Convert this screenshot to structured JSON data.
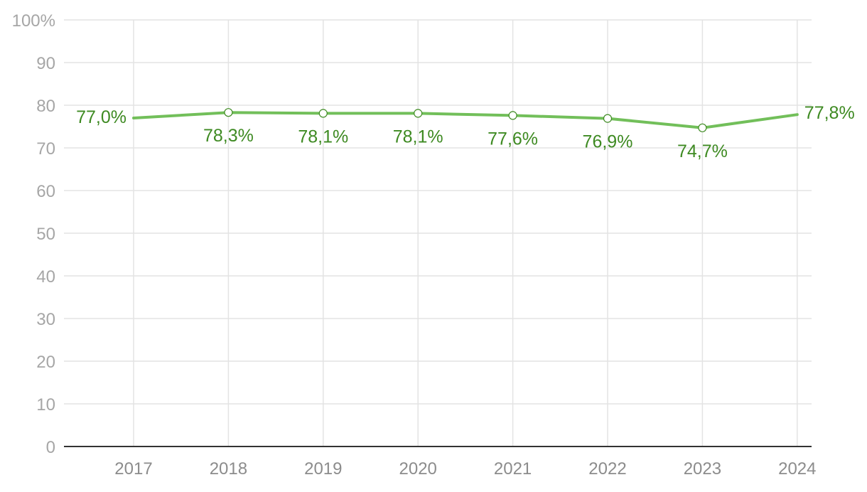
{
  "chart_data": {
    "type": "line",
    "categories": [
      "2017",
      "2018",
      "2019",
      "2020",
      "2021",
      "2022",
      "2023",
      "2024"
    ],
    "series": [
      {
        "values": [
          77.0,
          78.3,
          78.1,
          78.1,
          77.6,
          76.9,
          74.7,
          77.8
        ],
        "labels": [
          "77,0%",
          "78,3%",
          "78,1%",
          "78,1%",
          "77,6%",
          "76,9%",
          "74,7%",
          "77,8%"
        ],
        "color": "#72bf5a",
        "label_color": "#3e8a22"
      }
    ],
    "y_ticks": [
      "0",
      "10",
      "20",
      "30",
      "40",
      "50",
      "60",
      "70",
      "80",
      "90",
      "100%"
    ],
    "ylim": [
      0,
      100
    ],
    "grid": true,
    "legend": "none"
  }
}
